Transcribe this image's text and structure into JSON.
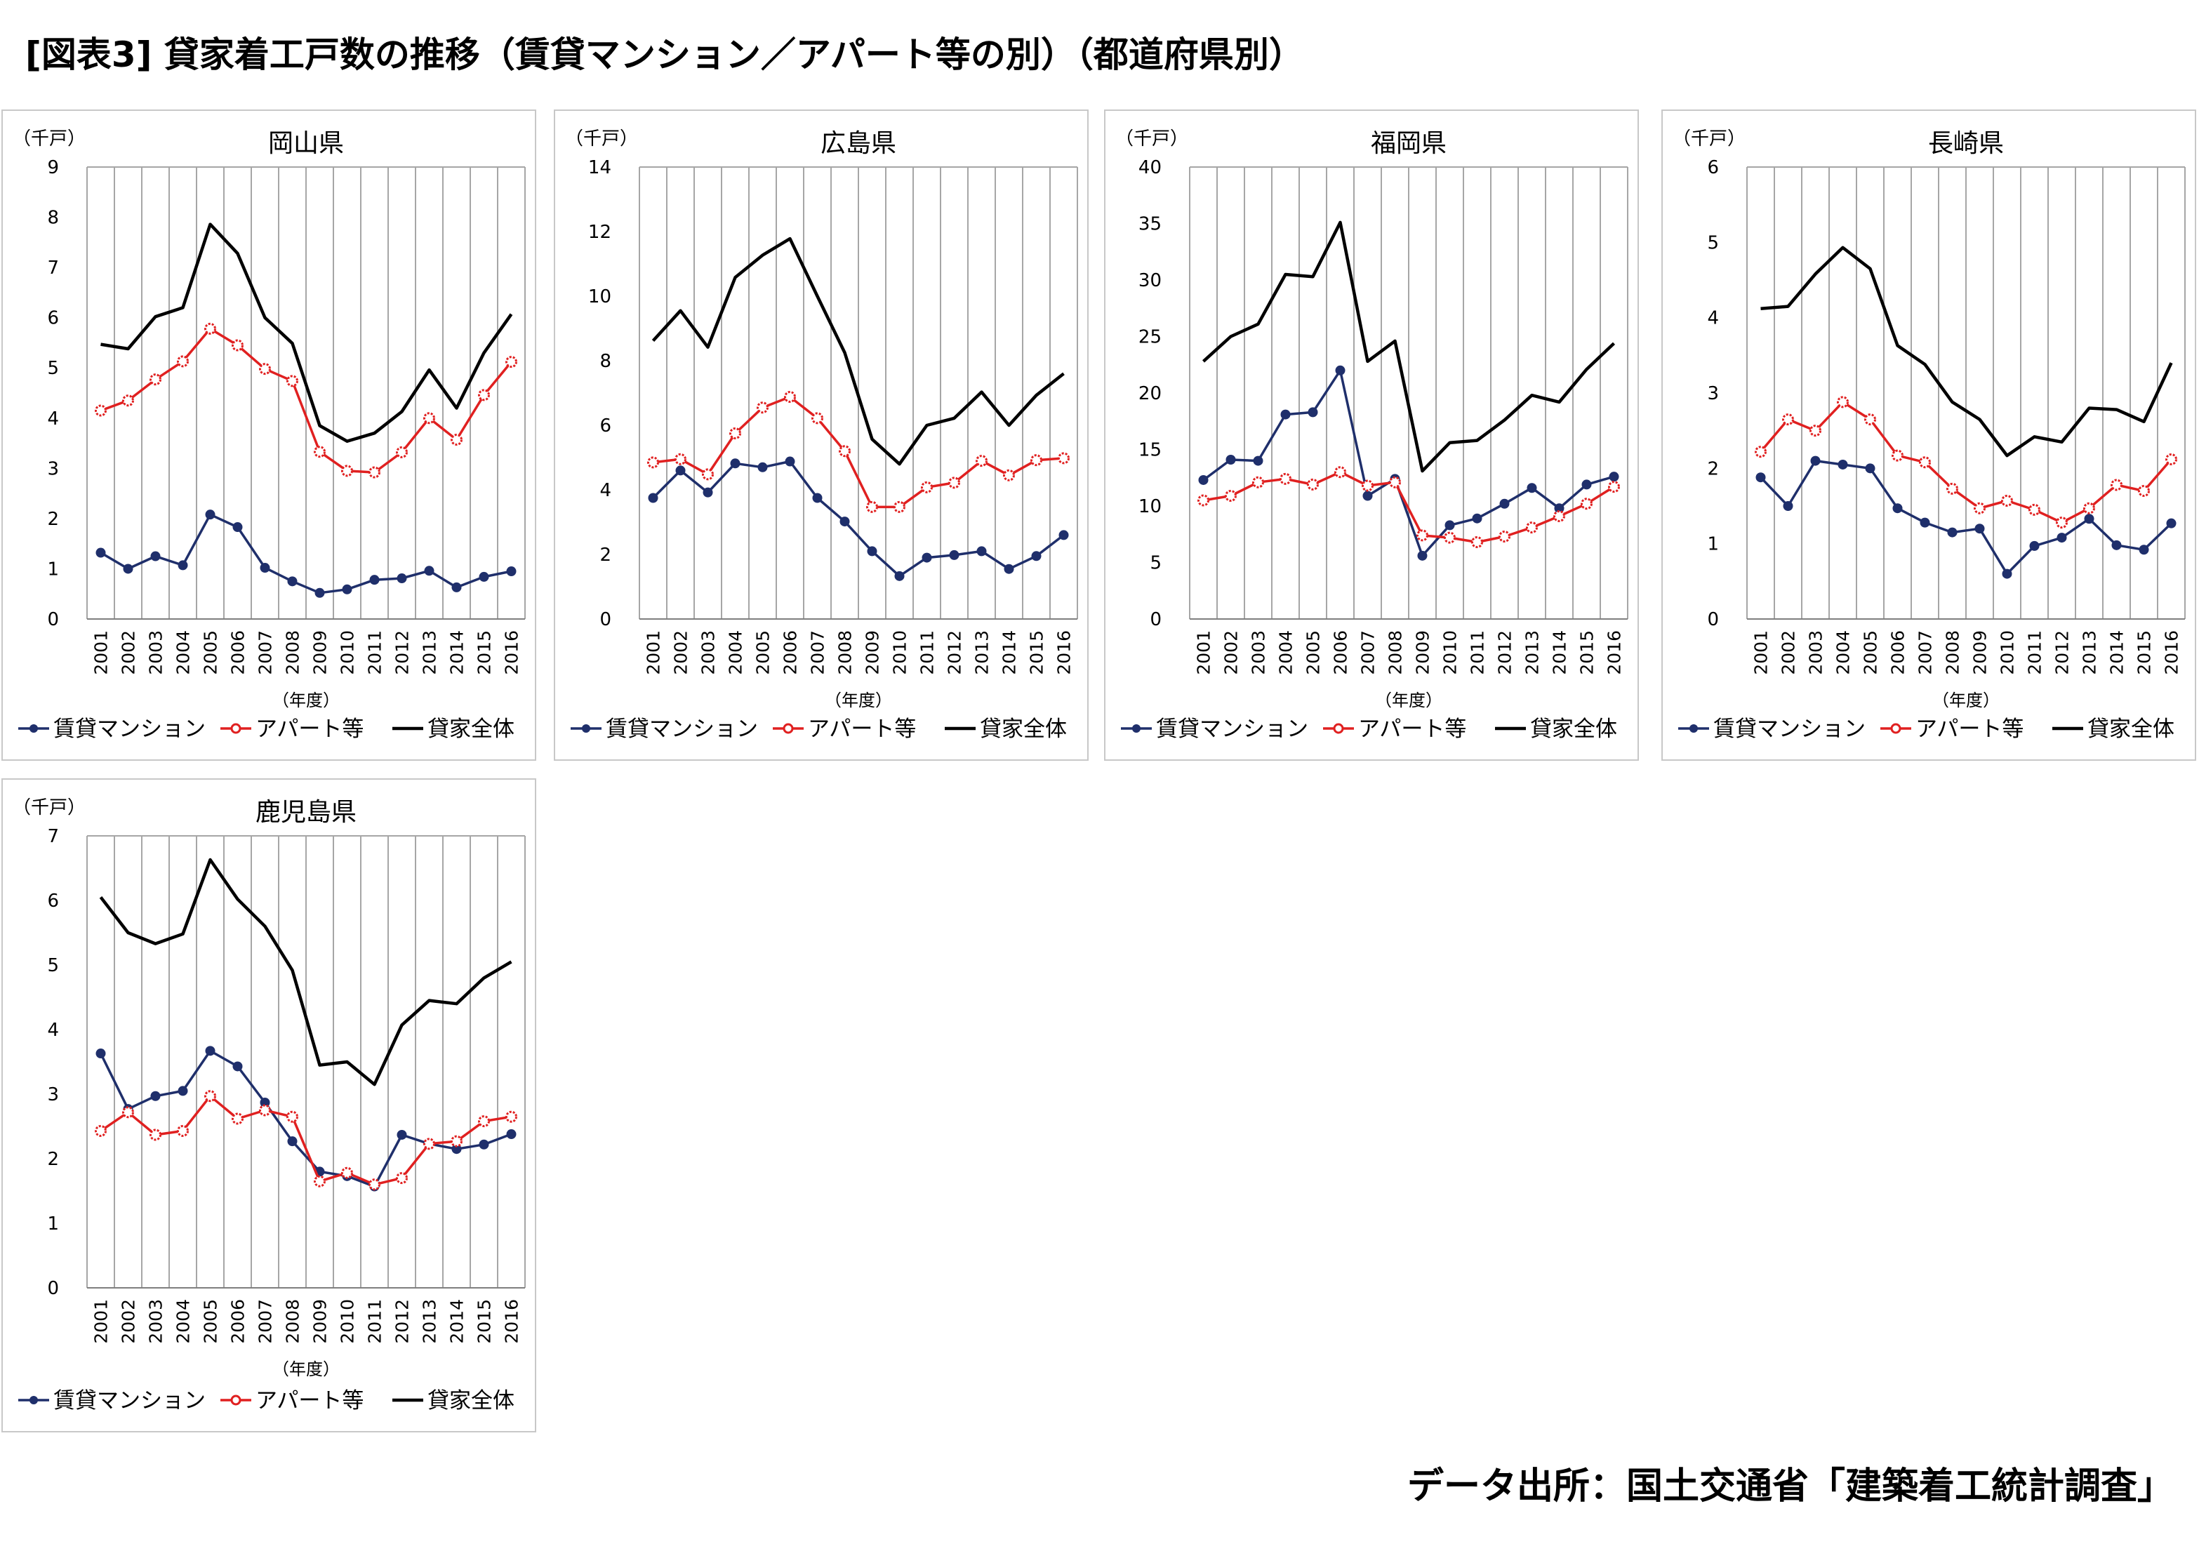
{
  "page_title": "[図表3] 貸家着工戸数の推移（賃貸マンション／アパート等の別）（都道府県別）",
  "source_note": "データ出所：国土交通省「建築着工統計調査」",
  "colors": {
    "mansion": "#1f2f6b",
    "apart": "#e02020",
    "total": "#000000",
    "grid": "#a6a6a6",
    "border": "#c8c8c8"
  },
  "chart_data": [
    {
      "type": "line",
      "title": "岡山県",
      "unit_label": "（千戸）",
      "xlabel": "（年度）",
      "ylabel": "",
      "ylim": [
        0,
        9
      ],
      "yticks": [
        0,
        1,
        2,
        3,
        4,
        5,
        6,
        7,
        8,
        9
      ],
      "grid": true,
      "legend_position": "bottom",
      "categories": [
        "2001",
        "2002",
        "2003",
        "2004",
        "2005",
        "2006",
        "2007",
        "2008",
        "2009",
        "2010",
        "2011",
        "2012",
        "2013",
        "2014",
        "2015",
        "2016"
      ],
      "series": [
        {
          "name": "賃貸マンション",
          "values": [
            1.32,
            1.0,
            1.25,
            1.07,
            2.08,
            1.83,
            1.02,
            0.75,
            0.52,
            0.59,
            0.78,
            0.81,
            0.96,
            0.63,
            0.84,
            0.95
          ]
        },
        {
          "name": "アパート等",
          "values": [
            4.15,
            4.35,
            4.77,
            5.13,
            5.78,
            5.45,
            4.98,
            4.74,
            3.33,
            2.95,
            2.92,
            3.32,
            4.0,
            3.57,
            4.46,
            5.12
          ]
        },
        {
          "name": "貸家全体",
          "values": [
            5.47,
            5.38,
            6.02,
            6.2,
            7.86,
            7.28,
            6.0,
            5.49,
            3.85,
            3.54,
            3.7,
            4.13,
            4.96,
            4.2,
            5.3,
            6.07
          ]
        }
      ]
    },
    {
      "type": "line",
      "title": "広島県",
      "unit_label": "（千戸）",
      "xlabel": "（年度）",
      "ylabel": "",
      "ylim": [
        0,
        14
      ],
      "yticks": [
        0,
        2,
        4,
        6,
        8,
        10,
        12,
        14
      ],
      "grid": true,
      "legend_position": "bottom",
      "categories": [
        "2001",
        "2002",
        "2003",
        "2004",
        "2005",
        "2006",
        "2007",
        "2008",
        "2009",
        "2010",
        "2011",
        "2012",
        "2013",
        "2014",
        "2015",
        "2016"
      ],
      "series": [
        {
          "name": "賃貸マンション",
          "values": [
            3.75,
            4.6,
            3.92,
            4.82,
            4.7,
            4.88,
            3.75,
            3.02,
            2.1,
            1.33,
            1.9,
            1.98,
            2.1,
            1.55,
            1.95,
            2.6
          ]
        },
        {
          "name": "アパート等",
          "values": [
            4.85,
            4.95,
            4.48,
            5.75,
            6.55,
            6.88,
            6.22,
            5.2,
            3.47,
            3.47,
            4.08,
            4.22,
            4.9,
            4.45,
            4.92,
            4.98
          ]
        },
        {
          "name": "貸家全体",
          "values": [
            8.62,
            9.55,
            8.42,
            10.58,
            11.27,
            11.78,
            10.0,
            8.25,
            5.57,
            4.8,
            6.0,
            6.22,
            7.03,
            6.0,
            6.93,
            7.6
          ]
        }
      ]
    },
    {
      "type": "line",
      "title": "福岡県",
      "unit_label": "（千戸）",
      "xlabel": "（年度）",
      "ylabel": "",
      "ylim": [
        0,
        40
      ],
      "yticks": [
        0,
        5,
        10,
        15,
        20,
        25,
        30,
        35,
        40
      ],
      "grid": true,
      "legend_position": "bottom",
      "categories": [
        "2001",
        "2002",
        "2003",
        "2004",
        "2005",
        "2006",
        "2007",
        "2008",
        "2009",
        "2010",
        "2011",
        "2012",
        "2013",
        "2014",
        "2015",
        "2016"
      ],
      "series": [
        {
          "name": "賃貸マンション",
          "values": [
            12.3,
            14.1,
            14.0,
            18.1,
            18.3,
            22.0,
            10.9,
            12.4,
            5.6,
            8.3,
            8.9,
            10.2,
            11.6,
            9.8,
            11.9,
            12.6
          ]
        },
        {
          "name": "アパート等",
          "values": [
            10.5,
            10.9,
            12.1,
            12.4,
            11.9,
            13.0,
            11.8,
            12.1,
            7.4,
            7.2,
            6.8,
            7.3,
            8.1,
            9.1,
            10.2,
            11.7
          ]
        },
        {
          "name": "貸家全体",
          "values": [
            22.8,
            25.0,
            26.1,
            30.5,
            30.3,
            35.1,
            22.8,
            24.6,
            13.1,
            15.6,
            15.8,
            17.6,
            19.8,
            19.2,
            22.1,
            24.4
          ]
        }
      ]
    },
    {
      "type": "line",
      "title": "長崎県",
      "unit_label": "（千戸）",
      "xlabel": "（年度）",
      "ylabel": "",
      "ylim": [
        0,
        6
      ],
      "yticks": [
        0,
        1,
        2,
        3,
        4,
        5,
        6
      ],
      "grid": true,
      "legend_position": "bottom",
      "categories": [
        "2001",
        "2002",
        "2003",
        "2004",
        "2005",
        "2006",
        "2007",
        "2008",
        "2009",
        "2010",
        "2011",
        "2012",
        "2013",
        "2014",
        "2015",
        "2016"
      ],
      "series": [
        {
          "name": "賃貸マンション",
          "values": [
            1.88,
            1.5,
            2.1,
            2.05,
            2.0,
            1.47,
            1.28,
            1.15,
            1.2,
            0.6,
            0.97,
            1.08,
            1.33,
            0.98,
            0.92,
            1.27
          ]
        },
        {
          "name": "アパート等",
          "values": [
            2.22,
            2.65,
            2.5,
            2.88,
            2.65,
            2.17,
            2.08,
            1.73,
            1.47,
            1.57,
            1.45,
            1.28,
            1.47,
            1.78,
            1.7,
            2.12
          ]
        },
        {
          "name": "貸家全体",
          "values": [
            4.12,
            4.15,
            4.58,
            4.93,
            4.65,
            3.63,
            3.38,
            2.88,
            2.65,
            2.17,
            2.42,
            2.35,
            2.8,
            2.78,
            2.62,
            3.4
          ]
        }
      ]
    },
    {
      "type": "line",
      "title": "鹿児島県",
      "unit_label": "（千戸）",
      "xlabel": "（年度）",
      "ylabel": "",
      "ylim": [
        0,
        7
      ],
      "yticks": [
        0,
        1,
        2,
        3,
        4,
        5,
        6,
        7
      ],
      "grid": true,
      "legend_position": "bottom",
      "categories": [
        "2001",
        "2002",
        "2003",
        "2004",
        "2005",
        "2006",
        "2007",
        "2008",
        "2009",
        "2010",
        "2011",
        "2012",
        "2013",
        "2014",
        "2015",
        "2016"
      ],
      "series": [
        {
          "name": "賃貸マンション",
          "values": [
            3.63,
            2.77,
            2.97,
            3.05,
            3.67,
            3.43,
            2.87,
            2.27,
            1.8,
            1.73,
            1.57,
            2.37,
            2.23,
            2.15,
            2.22,
            2.38
          ]
        },
        {
          "name": "アパート等",
          "values": [
            2.43,
            2.72,
            2.37,
            2.43,
            2.97,
            2.62,
            2.75,
            2.65,
            1.65,
            1.78,
            1.6,
            1.7,
            2.23,
            2.27,
            2.58,
            2.65
          ]
        },
        {
          "name": "貸家全体",
          "values": [
            6.05,
            5.5,
            5.33,
            5.48,
            6.63,
            6.02,
            5.6,
            4.92,
            3.45,
            3.5,
            3.15,
            4.07,
            4.45,
            4.4,
            4.8,
            5.05
          ]
        }
      ]
    }
  ]
}
